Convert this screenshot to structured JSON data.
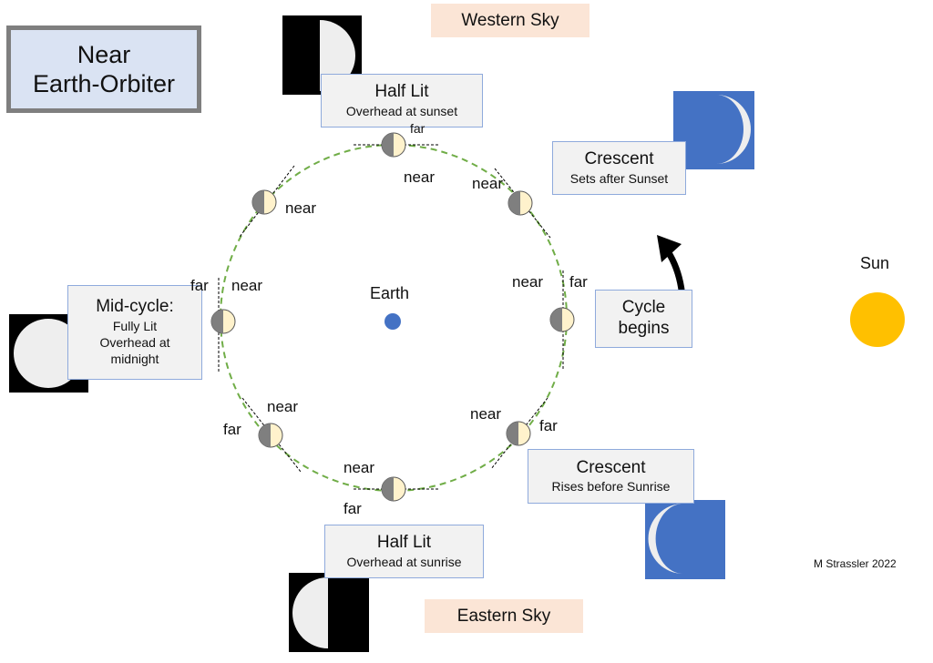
{
  "title": {
    "line1": "Near",
    "line2": "Earth-Orbiter"
  },
  "sky": {
    "western": "Western Sky",
    "eastern": "Eastern Sky"
  },
  "center": {
    "label": "Earth"
  },
  "sun": {
    "label": "Sun"
  },
  "cycle_start": {
    "line1": "Cycle",
    "line2": "begins"
  },
  "phases": {
    "half_sunset": {
      "name": "Half Lit",
      "desc": "Overhead at sunset"
    },
    "crescent_sunset": {
      "name": "Crescent",
      "desc": "Sets after Sunset"
    },
    "full": {
      "name": "Mid-cycle:",
      "desc1": "Fully Lit",
      "desc2": "Overhead at",
      "desc3": "midnight"
    },
    "crescent_sunrise": {
      "name": "Crescent",
      "desc": "Rises before Sunrise"
    },
    "half_sunrise": {
      "name": "Half Lit",
      "desc": "Overhead at sunrise"
    }
  },
  "orbit_labels": {
    "top_far": "far",
    "top_near": "near",
    "upright_near": "near",
    "upleft_near": "near",
    "right_near": "near",
    "right_far": "far",
    "left_far": "far",
    "left_near": "near",
    "lowleft_near": "near",
    "lowleft_far": "far",
    "lowright_near": "near",
    "lowright_far": "far",
    "bottom_near": "near",
    "bottom_far": "far"
  },
  "credit": "M Strassler 2022",
  "colors": {
    "earth": "#4472c4",
    "sun": "#ffc000",
    "orbit": "#70ad47",
    "lit": "#fff2cc",
    "dark": "#7f7f7f",
    "sky_box": "#fbe5d6",
    "title_box": "#dae3f3",
    "phase_box": "#f2f2f2",
    "moon_bg_blue": "#4472c4"
  }
}
